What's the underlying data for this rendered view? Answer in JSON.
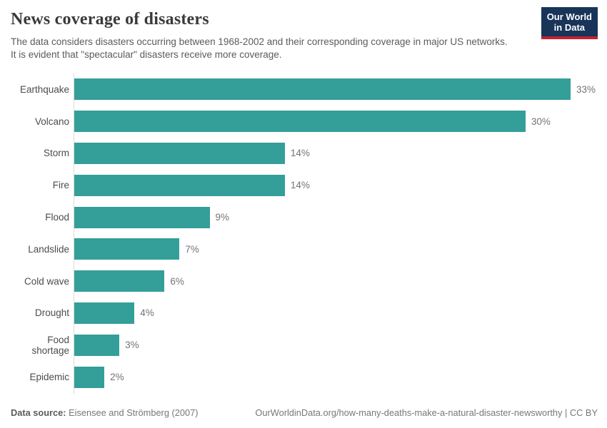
{
  "header": {
    "title": "News coverage of disasters",
    "subtitle": "The data considers disasters occurring between 1968-2002 and their corresponding coverage in major US networks. It is evident that \"spectacular\" disasters receive more coverage.",
    "logo": {
      "line1": "Our World",
      "line2": "in Data"
    }
  },
  "chart_data": {
    "type": "bar",
    "orientation": "horizontal",
    "title": "News coverage of disasters",
    "categories": [
      "Earthquake",
      "Volcano",
      "Storm",
      "Fire",
      "Flood",
      "Landslide",
      "Cold wave",
      "Drought",
      "Food shortage",
      "Epidemic"
    ],
    "values": [
      33,
      30,
      14,
      14,
      9,
      7,
      6,
      4,
      3,
      2
    ],
    "value_labels": [
      "33%",
      "30%",
      "14%",
      "14%",
      "9%",
      "7%",
      "6%",
      "4%",
      "3%",
      "2%"
    ],
    "unit": "%",
    "xlim": [
      0,
      33
    ],
    "grid": false,
    "legend": "none",
    "bar_color": "#349e99"
  },
  "footer": {
    "source_label": "Data source:",
    "source_value": "Eisensee and Strömberg (2007)",
    "link": "OurWorldinData.org/how-many-deaths-make-a-natural-disaster-newsworthy | CC BY"
  },
  "colors": {
    "bar": "#349e99",
    "title_text": "#3a3a3a",
    "subtitle_text": "#5b5b5b",
    "value_text": "#737373",
    "axis_line": "#dcdcdc",
    "logo_bg": "#183459",
    "logo_accent": "#c4212e"
  }
}
